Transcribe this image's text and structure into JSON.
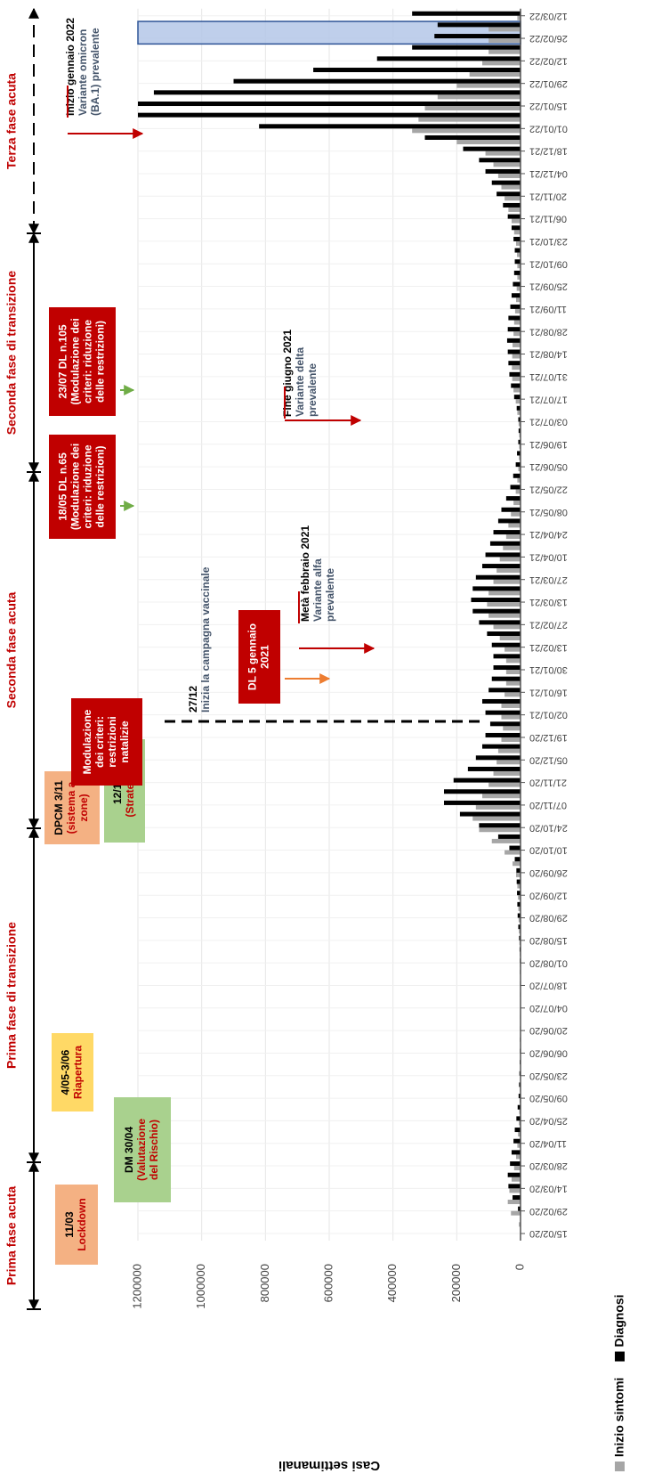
{
  "chart_data": {
    "type": "bar",
    "ylabel": "Casi settimanali",
    "ylim": [
      0,
      1200000
    ],
    "yticks": [
      0,
      200000,
      400000,
      600000,
      800000,
      1000000,
      1200000
    ],
    "grid": true,
    "categories": [
      "15/02/20",
      null,
      "29/02/20",
      null,
      "14/03/20",
      null,
      "28/03/20",
      null,
      "11/04/20",
      null,
      "25/04/20",
      null,
      "09/05/20",
      null,
      "23/05/20",
      null,
      "06/06/20",
      null,
      "20/06/20",
      null,
      "04/07/20",
      null,
      "18/07/20",
      null,
      "01/08/20",
      null,
      "15/08/20",
      null,
      "29/08/20",
      null,
      "12/09/20",
      null,
      "26/09/20",
      null,
      "10/10/20",
      null,
      "24/10/20",
      null,
      "07/11/20",
      null,
      "21/11/20",
      null,
      "05/12/20",
      null,
      "19/12/20",
      null,
      "02/01/21",
      null,
      "16/01/21",
      null,
      "30/01/21",
      null,
      "13/02/21",
      null,
      "27/02/21",
      null,
      "13/03/21",
      null,
      "27/03/21",
      null,
      "10/04/21",
      null,
      "24/04/21",
      null,
      "08/05/21",
      null,
      "22/05/21",
      null,
      "05/06/21",
      null,
      "19/06/21",
      null,
      "03/07/21",
      null,
      "17/07/21",
      null,
      "31/07/21",
      null,
      "14/08/21",
      null,
      "28/08/21",
      null,
      "11/09/21",
      null,
      "25/09/21",
      null,
      "09/10/21",
      null,
      "23/10/21",
      null,
      "06/11/21",
      null,
      "20/11/21",
      null,
      "04/12/21",
      null,
      "18/12/21",
      null,
      "01/01/22",
      null,
      "15/01/22",
      null,
      "29/01/22",
      null,
      "12/02/22",
      null,
      "26/02/22",
      null,
      "12/03/22"
    ],
    "series": [
      {
        "name": "Inizio sintomi",
        "color": "#a6a6a6",
        "values": [
          0,
          5000,
          30000,
          40000,
          35000,
          28000,
          20000,
          14000,
          10000,
          8000,
          5000,
          4000,
          3000,
          2000,
          1500,
          1200,
          1000,
          1000,
          1000,
          1000,
          1000,
          1100,
          1200,
          1500,
          1800,
          2500,
          3500,
          5000,
          6000,
          7000,
          8000,
          10000,
          14000,
          25000,
          50000,
          90000,
          130000,
          150000,
          140000,
          120000,
          100000,
          85000,
          75000,
          70000,
          60000,
          55000,
          60000,
          60000,
          50000,
          45000,
          45000,
          45000,
          50000,
          65000,
          85000,
          100000,
          105000,
          100000,
          85000,
          75000,
          65000,
          55000,
          45000,
          38000,
          30000,
          22000,
          15000,
          10000,
          7000,
          5000,
          4000,
          4000,
          6000,
          10000,
          15000,
          22000,
          26000,
          27000,
          26000,
          25000,
          22000,
          20000,
          17000,
          14000,
          12000,
          10000,
          10000,
          11000,
          14000,
          20000,
          28000,
          38000,
          50000,
          60000,
          70000,
          85000,
          110000,
          200000,
          340000,
          320000,
          300000,
          260000,
          200000,
          160000,
          120000,
          100000,
          100000,
          100000,
          10000
        ]
      },
      {
        "name": "Diagnosi",
        "color": "#000000",
        "values": [
          0,
          1000,
          8000,
          25000,
          38000,
          40000,
          33000,
          28000,
          22000,
          18000,
          13000,
          9000,
          6000,
          4500,
          3500,
          2500,
          2000,
          1800,
          1600,
          1500,
          1400,
          1500,
          1600,
          1800,
          2200,
          3000,
          4500,
          7000,
          9000,
          10000,
          11000,
          12000,
          13000,
          18000,
          35000,
          70000,
          130000,
          190000,
          240000,
          240000,
          210000,
          165000,
          140000,
          120000,
          110000,
          95000,
          110000,
          120000,
          100000,
          90000,
          85000,
          85000,
          90000,
          105000,
          130000,
          150000,
          155000,
          150000,
          140000,
          120000,
          110000,
          95000,
          85000,
          70000,
          60000,
          45000,
          32000,
          23000,
          15000,
          11000,
          7000,
          6000,
          7000,
          12000,
          20000,
          30000,
          35000,
          38000,
          40000,
          42000,
          40000,
          38000,
          32000,
          28000,
          24000,
          20000,
          18000,
          18000,
          22000,
          28000,
          40000,
          55000,
          75000,
          90000,
          110000,
          130000,
          180000,
          300000,
          820000,
          1200000,
          1200000,
          1150000,
          900000,
          650000,
          450000,
          340000,
          270000,
          260000,
          340000
        ]
      }
    ],
    "phases": [
      "Prima fase acuta",
      "Prima fase di transizione",
      "Seconda fase acuta",
      "Seconda fase di transizione",
      "Terza fase acuta"
    ],
    "annotations": [
      {
        "lines": [
          "11/03",
          "Lockdown"
        ]
      },
      {
        "lines": [
          "DM 30/04",
          "(Valutazione",
          "del Rischio)"
        ]
      },
      {
        "lines": [
          "4/05-3/06",
          "Riapertura"
        ]
      },
      {
        "lines": [
          "DPCM 3/11",
          "(sistema a",
          "zone)"
        ]
      },
      {
        "lines": [
          "12/10",
          "(Strategia)"
        ]
      },
      {
        "lines": [
          "Modulazione",
          "dei criteri:",
          "restrizioni",
          "natalizie"
        ]
      },
      {
        "lines": [
          "27/12",
          "Inizia la campagna vaccinale"
        ]
      },
      {
        "lines": [
          "DL 5 gennaio",
          "2021"
        ]
      },
      {
        "lines": [
          "Metà febbraio 2021",
          "Variante alfa",
          "prevalente"
        ]
      },
      {
        "lines": [
          "18/05 DL n.65",
          "(Modulazione dei",
          "criteri: riduzione",
          "delle restrizioni)"
        ]
      },
      {
        "lines": [
          "23/07 DL n.105",
          "(Modulazione dei",
          "criteri: riduzione",
          "delle restrizioni)"
        ]
      },
      {
        "lines": [
          "Fine giugno 2021",
          "Variante delta",
          "prevalente"
        ]
      },
      {
        "lines": [
          "Inizio gennaio 2022",
          "Variante omicron",
          "(BA.1) prevalente"
        ]
      }
    ]
  }
}
